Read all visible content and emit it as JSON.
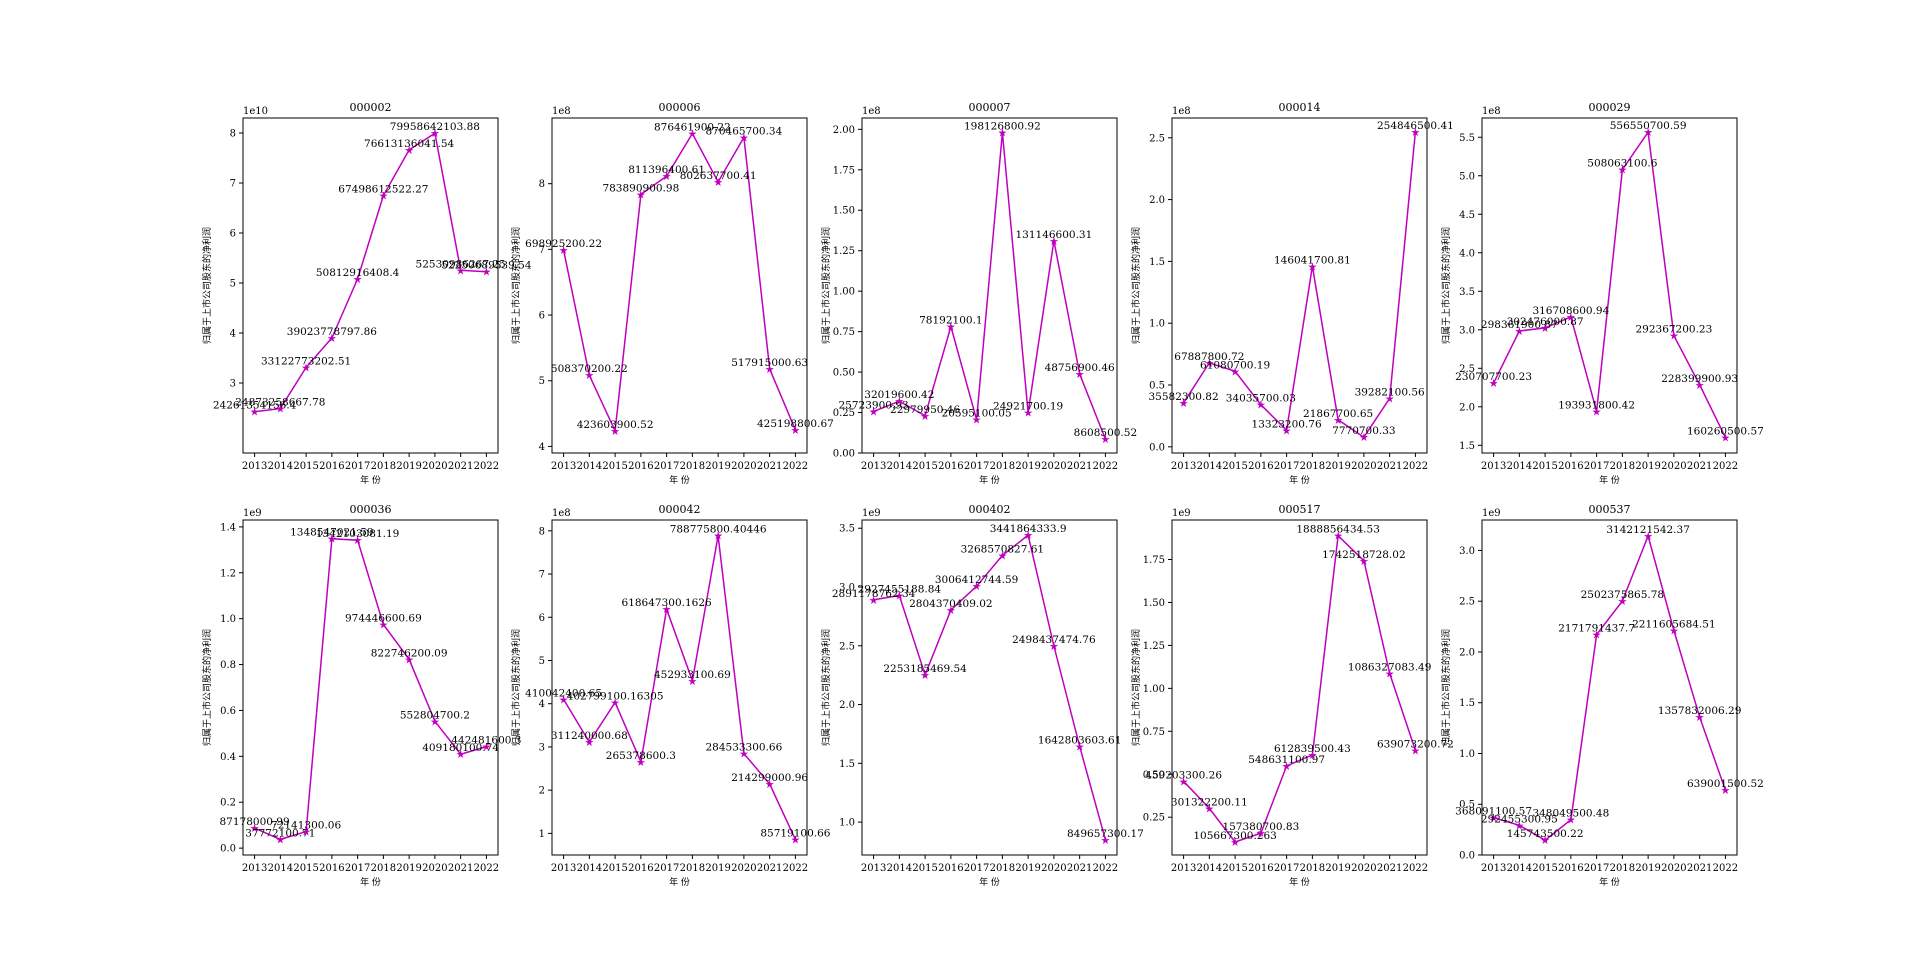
{
  "figure": {
    "xlabel": "年 份",
    "ylabel": "归属于上市公司股东的净利润",
    "line_color": "#bf00bf"
  },
  "chart_data": [
    {
      "type": "line",
      "title": "000002",
      "x": [
        2013,
        2014,
        2015,
        2016,
        2017,
        2018,
        2019,
        2020,
        2021,
        2022
      ],
      "values": [
        24261354156.4,
        24873258667.78,
        33122773202.51,
        39023778797.86,
        50812916408.4,
        67498612522.27,
        76613136041.54,
        79958642103.88,
        52530986267.25,
        52250689539.54
      ],
      "labels": [
        "24261354156.4",
        "24873258667.78",
        "33122773202.51",
        "39023778797.86",
        "50812916408.4",
        "67498612522.27",
        "76613136041.54",
        "79958642103.88",
        "52530986267.25",
        "52250689539.54"
      ],
      "sci": "1e10",
      "scale": 10000000000.0,
      "ylim": [
        1.6,
        8.3
      ],
      "yticks": [
        3,
        4,
        5,
        6,
        7,
        8
      ]
    },
    {
      "type": "line",
      "title": "000006",
      "x": [
        2013,
        2014,
        2015,
        2016,
        2017,
        2018,
        2019,
        2020,
        2021,
        2022
      ],
      "values": [
        698925200.22,
        508370200.22,
        423603900.52,
        783890900.98,
        811396400.61,
        876461900.22,
        802637700.41,
        870465700.34,
        517915000.63,
        425198800.67
      ],
      "labels": [
        "698925200.22",
        "508370200.22",
        "423603900.52",
        "783890900.98",
        "811396400.61",
        "876461900.22",
        "802637700.41",
        "870465700.34",
        "517915000.63",
        "425198800.67"
      ],
      "sci": "1e8",
      "scale": 100000000.0,
      "ylim": [
        3.9,
        9.0
      ],
      "yticks": [
        4,
        5,
        6,
        7,
        8
      ]
    },
    {
      "type": "line",
      "title": "000007",
      "x": [
        2013,
        2014,
        2015,
        2016,
        2017,
        2018,
        2019,
        2020,
        2021,
        2022
      ],
      "values": [
        25723900.93,
        32019600.42,
        22979950.46,
        78192100.1,
        20595100.05,
        198126800.92,
        24921700.19,
        131146600.31,
        48756900.46,
        8608500.52
      ],
      "labels": [
        "25723900.93",
        "32019600.42",
        "22979950.46",
        "78192100.1",
        "20595100.05",
        "198126800.92",
        "24921700.19",
        "131146600.31",
        "48756900.46",
        "8608500.52"
      ],
      "sci": "1e8",
      "scale": 100000000.0,
      "ylim": [
        0,
        2.07
      ],
      "yticks": [
        0,
        0.25,
        0.5,
        0.75,
        1.0,
        1.25,
        1.5,
        1.75,
        2.0
      ]
    },
    {
      "type": "line",
      "title": "000014",
      "x": [
        2013,
        2014,
        2015,
        2016,
        2017,
        2018,
        2019,
        2020,
        2021,
        2022
      ],
      "values": [
        35582300.82,
        67887800.72,
        61080700.19,
        34035700.03,
        13323200.76,
        146041700.81,
        21867700.65,
        7770700.33,
        39282100.56,
        254846500.41
      ],
      "labels": [
        "35582300.82",
        "67887800.72",
        "61080700.19",
        "34035700.03",
        "13323200.76",
        "146041700.81",
        "21867700.65",
        "7770700.33",
        "39282100.56",
        "254846500.41"
      ],
      "sci": "1e8",
      "scale": 100000000.0,
      "ylim": [
        -0.05,
        2.66
      ],
      "yticks": [
        0,
        0.5,
        1.0,
        1.5,
        2.0,
        2.5
      ]
    },
    {
      "type": "line",
      "title": "000029",
      "x": [
        2013,
        2014,
        2015,
        2016,
        2017,
        2018,
        2019,
        2020,
        2021,
        2022
      ],
      "values": [
        230707700.23,
        298361900.87,
        302476000.87,
        316708600.94,
        193931800.42,
        508063100.6,
        556550700.59,
        292367200.23,
        228399900.93,
        160260500.57
      ],
      "labels": [
        "230707700.23",
        "298361900.87",
        "302476000.87",
        "316708600.94",
        "193931800.42",
        "508063100.6",
        "556550700.59",
        "292367200.23",
        "228399900.93",
        "160260500.57"
      ],
      "sci": "1e8",
      "scale": 100000000.0,
      "ylim": [
        1.4,
        5.75
      ],
      "yticks": [
        1.5,
        2.0,
        2.5,
        3.0,
        3.5,
        4.0,
        4.5,
        5.0,
        5.5
      ]
    },
    {
      "type": "line",
      "title": "000036",
      "x": [
        2013,
        2014,
        2015,
        2016,
        2017,
        2018,
        2019,
        2020,
        2021,
        2022
      ],
      "values": [
        87178000.99,
        37772100.71,
        72141300.06,
        1348547021.59,
        1342103081.19,
        974446600.69,
        822746200.09,
        552804700.2,
        409180100.74,
        442481600.3
      ],
      "labels": [
        "87178000.99",
        "37772100.71",
        "72141300.06",
        "1348547021.59",
        "1342103081.19",
        "974446600.69",
        "822746200.09",
        "552804700.2",
        "409180100.74",
        "442481600.3"
      ],
      "sci": "1e9",
      "scale": 1000000000.0,
      "ylim": [
        -0.03,
        1.43
      ],
      "yticks": [
        0,
        0.2,
        0.4,
        0.6,
        0.8,
        1.0,
        1.2,
        1.4
      ]
    },
    {
      "type": "line",
      "title": "000042",
      "x": [
        2013,
        2014,
        2015,
        2016,
        2017,
        2018,
        2019,
        2020,
        2021,
        2022
      ],
      "values": [
        410042400.65,
        311240000.68,
        402799100.16305,
        265378600.3,
        618647300.1626,
        452933100.69,
        788775800.40446,
        284533300.66,
        214299000.96,
        85719100.66
      ],
      "labels": [
        "410042400.65",
        "311240000.68",
        "402799100.16305",
        "265378600.3",
        "618647300.1626",
        "452933100.69",
        "788775800.40446",
        "284533300.66",
        "214299000.96",
        "85719100.66"
      ],
      "sci": "1e8",
      "scale": 100000000.0,
      "ylim": [
        0.5,
        8.25
      ],
      "yticks": [
        1,
        2,
        3,
        4,
        5,
        6,
        7,
        8
      ]
    },
    {
      "type": "line",
      "title": "000402",
      "x": [
        2013,
        2014,
        2015,
        2016,
        2017,
        2018,
        2019,
        2020,
        2021,
        2022
      ],
      "values": [
        2891178762.34,
        2927455188.84,
        2253185469.54,
        2804370409.02,
        3006412744.59,
        3268570827.61,
        3441864333.9,
        2498437474.76,
        1642803603.61,
        849657300.17
      ],
      "labels": [
        "2891178762.34",
        "2927455188.84",
        "2253185469.54",
        "2804370409.02",
        "3006412744.59",
        "3268570827.61",
        "3441864333.9",
        "2498437474.76",
        "1642803603.61",
        "849657300.17"
      ],
      "sci": "1e9",
      "scale": 1000000000.0,
      "ylim": [
        0.72,
        3.57
      ],
      "yticks": [
        1.0,
        1.5,
        2.0,
        2.5,
        3.0,
        3.5
      ]
    },
    {
      "type": "line",
      "title": "000517",
      "x": [
        2013,
        2014,
        2015,
        2016,
        2017,
        2018,
        2019,
        2020,
        2021,
        2022
      ],
      "values": [
        459203300.26,
        301322200.11,
        105667300.263,
        157380700.83,
        548631100.97,
        612839500.43,
        1888856434.53,
        1742518728.02,
        1086327083.49,
        639073200.72
      ],
      "labels": [
        "459203300.26",
        "301322200.11",
        "105667300.263",
        "157380700.83",
        "548631100.97",
        "612839500.43",
        "1888856434.53",
        "1742518728.02",
        "1086327083.49",
        "639073200.72"
      ],
      "sci": "1e9",
      "scale": 1000000000.0,
      "ylim": [
        0.03,
        1.98
      ],
      "yticks": [
        0.25,
        0.5,
        0.75,
        1.0,
        1.25,
        1.5,
        1.75
      ]
    },
    {
      "type": "line",
      "title": "000537",
      "x": [
        2013,
        2014,
        2015,
        2016,
        2017,
        2018,
        2019,
        2020,
        2021,
        2022
      ],
      "values": [
        368091100.57,
        292455300.95,
        145743500.22,
        348049500.48,
        2171791437.7,
        2502375865.78,
        3142121542.37,
        2211605684.51,
        1357832006.29,
        639001500.52
      ],
      "labels": [
        "368091100.57",
        "292455300.95",
        "145743500.22",
        "348049500.48",
        "2171791437.7",
        "2502375865.78",
        "3142121542.37",
        "2211605684.51",
        "1357832006.29",
        "639001500.52"
      ],
      "sci": "1e9",
      "scale": 1000000000.0,
      "ylim": [
        0,
        3.3
      ],
      "yticks": [
        0,
        0.5,
        1.0,
        1.5,
        2.0,
        2.5,
        3.0
      ]
    }
  ]
}
